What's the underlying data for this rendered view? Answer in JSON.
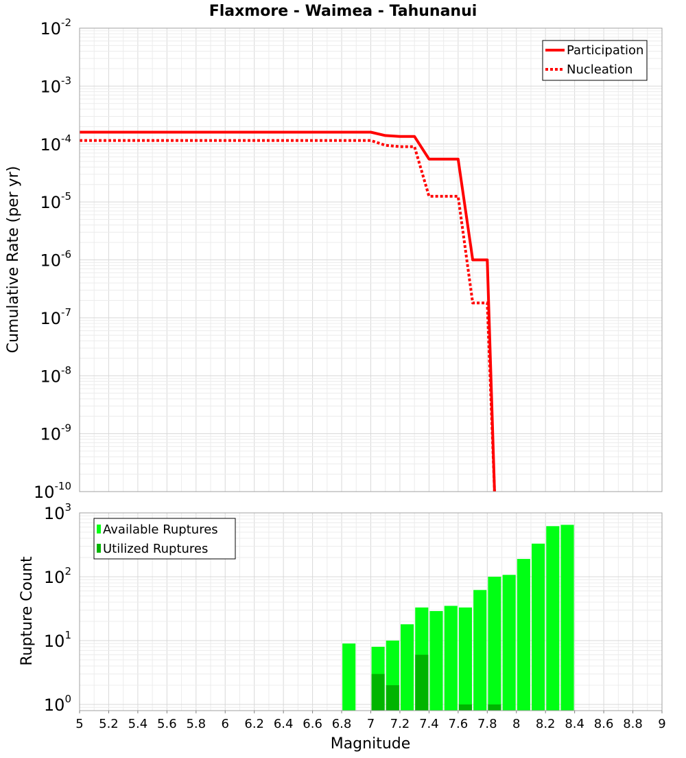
{
  "chart_data": [
    {
      "type": "line",
      "title": "Flaxmore - Waimea - Tahunanui",
      "xlabel": "Magnitude",
      "ylabel": "Cumulative Rate (per yr)",
      "xlim": [
        5,
        9
      ],
      "ylim": [
        1e-10,
        0.01
      ],
      "yscale": "log",
      "grid": true,
      "legend_position": "top-right",
      "x_ticks": [
        "5",
        "5.2",
        "5.4",
        "5.6",
        "5.8",
        "6",
        "6.2",
        "6.4",
        "6.6",
        "6.8",
        "7",
        "7.2",
        "7.4",
        "7.6",
        "7.8",
        "8",
        "8.2",
        "8.4",
        "8.6",
        "8.8",
        "9"
      ],
      "y_decade_exponents": [
        "-10",
        "-9",
        "-8",
        "-7",
        "-6",
        "-5",
        "-4",
        "-3",
        "-2"
      ],
      "y_decade_base": "10",
      "series": [
        {
          "name": "Participation",
          "color": "#ff0000",
          "style": "solid",
          "x": [
            5.0,
            7.0,
            7.1,
            7.2,
            7.3,
            7.4,
            7.5,
            7.6,
            7.7,
            7.8,
            7.85
          ],
          "y": [
            0.00016,
            0.00016,
            0.00014,
            0.000135,
            0.000135,
            5.5e-05,
            5.5e-05,
            5.5e-05,
            1e-06,
            1e-06,
            1e-10
          ]
        },
        {
          "name": "Nucleation",
          "color": "#ff0000",
          "style": "dotted",
          "x": [
            5.0,
            7.0,
            7.1,
            7.2,
            7.3,
            7.4,
            7.5,
            7.6,
            7.7,
            7.8,
            7.85
          ],
          "y": [
            0.000115,
            0.000115,
            9.5e-05,
            9e-05,
            9e-05,
            1.25e-05,
            1.25e-05,
            1.25e-05,
            1.8e-07,
            1.8e-07,
            1e-10
          ]
        }
      ]
    },
    {
      "type": "bar",
      "xlabel": "Magnitude",
      "ylabel": "Rupture Count",
      "xlim": [
        5,
        9
      ],
      "ylim": [
        0.8,
        1000
      ],
      "yscale": "log",
      "grid": true,
      "legend_position": "top-left",
      "bar_width": 0.09,
      "y_decade_exponents": [
        "0",
        "1",
        "2",
        "3"
      ],
      "y_decade_base": "10",
      "series": [
        {
          "name": "Available Ruptures",
          "color": "#00ff14",
          "x": [
            6.85,
            7.05,
            7.15,
            7.25,
            7.35,
            7.45,
            7.55,
            7.65,
            7.75,
            7.85,
            7.95,
            8.05,
            8.15,
            8.25,
            8.35
          ],
          "values": [
            9,
            8,
            10,
            18,
            33,
            29,
            35,
            33,
            62,
            100,
            107,
            190,
            330,
            620,
            650
          ]
        },
        {
          "name": "Utilized Ruptures",
          "color": "#00b400",
          "x": [
            7.05,
            7.15,
            7.35,
            7.65,
            7.85
          ],
          "values": [
            3,
            2,
            6,
            1,
            1
          ]
        }
      ]
    }
  ]
}
